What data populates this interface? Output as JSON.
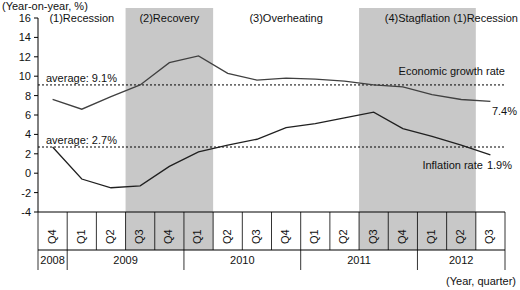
{
  "chart_data": {
    "type": "line",
    "y_label": "(Year-on-year, %)",
    "x_label": "(Year, quarter)",
    "categories": [
      "Q4",
      "Q1",
      "Q2",
      "Q3",
      "Q4",
      "Q1",
      "Q2",
      "Q3",
      "Q4",
      "Q1",
      "Q2",
      "Q3",
      "Q4",
      "Q1",
      "Q2",
      "Q3"
    ],
    "category_groups": [
      {
        "label": "2008",
        "start": 0,
        "end": 0
      },
      {
        "label": "2009",
        "start": 1,
        "end": 4
      },
      {
        "label": "2010",
        "start": 5,
        "end": 8
      },
      {
        "label": "2011",
        "start": 9,
        "end": 12
      },
      {
        "label": "2012",
        "start": 13,
        "end": 15
      }
    ],
    "phases": [
      {
        "label": "(1)Recession",
        "start": 0,
        "end": 2
      },
      {
        "label": "(2)Recovery",
        "start": 3,
        "end": 5,
        "color": "#c8c8c8"
      },
      {
        "label": "(3)Overheating",
        "start": 6,
        "end": 10
      },
      {
        "label": "(4)Stagflation",
        "start": 11,
        "end": 14,
        "color": "#c8c8c8"
      },
      {
        "label": "(1)Recession",
        "start": 15,
        "end": 15
      }
    ],
    "series": [
      {
        "name": "Economic growth rate",
        "color": "#404040",
        "end_label": "7.4%",
        "values": [
          7.6,
          6.6,
          7.9,
          9.1,
          11.4,
          12.1,
          10.3,
          9.6,
          9.8,
          9.7,
          9.5,
          9.1,
          8.9,
          8.1,
          7.6,
          7.4
        ]
      },
      {
        "name": "Inflation rate",
        "color": "#202020",
        "end_label": "1.9%",
        "values": [
          2.7,
          -0.6,
          -1.5,
          -1.3,
          0.7,
          2.2,
          2.9,
          3.5,
          4.7,
          5.1,
          5.7,
          6.3,
          4.6,
          3.8,
          2.9,
          1.9
        ]
      }
    ],
    "reference_lines": [
      {
        "value": 9.1,
        "label": "average: 9.1%"
      },
      {
        "value": 2.7,
        "label": "average: 2.7%"
      }
    ],
    "ylim": [
      -4,
      16
    ],
    "yticks": [
      -4,
      -2,
      0,
      2,
      4,
      6,
      8,
      10,
      12,
      14,
      16
    ],
    "grid": false
  }
}
